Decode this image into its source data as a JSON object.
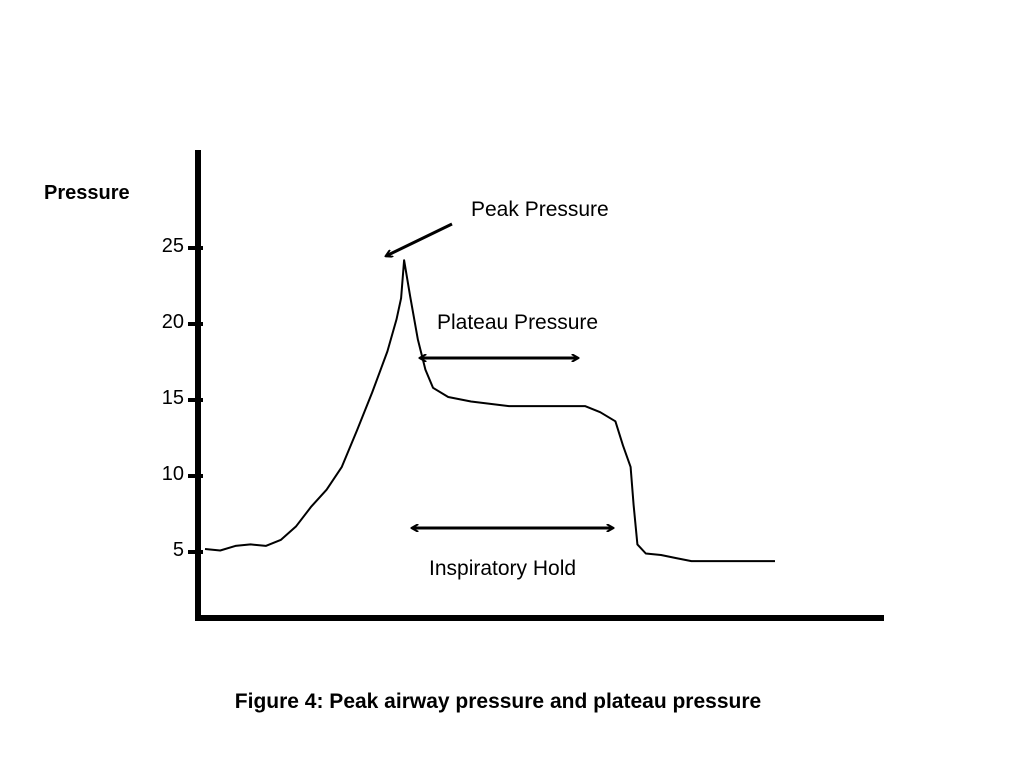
{
  "chart_data": {
    "type": "line",
    "ylabel": "Pressure",
    "xlabel": "",
    "yticks": [
      5,
      10,
      15,
      20,
      25
    ],
    "ylim": [
      0,
      29
    ],
    "grid": false,
    "series": [
      {
        "points": [
          [
            0,
            5.2
          ],
          [
            2,
            5.1
          ],
          [
            4,
            5.4
          ],
          [
            6,
            5.5
          ],
          [
            8,
            5.4
          ],
          [
            10,
            5.8
          ],
          [
            12,
            6.7
          ],
          [
            14,
            8.0
          ],
          [
            16,
            9.1
          ],
          [
            18,
            10.6
          ],
          [
            20,
            13.0
          ],
          [
            22,
            15.5
          ],
          [
            24,
            18.2
          ],
          [
            25.2,
            20.3
          ],
          [
            25.8,
            21.7
          ],
          [
            26.2,
            24.2
          ],
          [
            27,
            21.8
          ],
          [
            28,
            19.0
          ],
          [
            29,
            17.0
          ],
          [
            30,
            15.8
          ],
          [
            32,
            15.2
          ],
          [
            35,
            14.9
          ],
          [
            40,
            14.6
          ],
          [
            45,
            14.6
          ],
          [
            50,
            14.6
          ],
          [
            52,
            14.2
          ],
          [
            54,
            13.6
          ],
          [
            55,
            12.0
          ],
          [
            56,
            10.6
          ],
          [
            56.4,
            8.1
          ],
          [
            56.9,
            5.5
          ],
          [
            58,
            4.9
          ],
          [
            60,
            4.8
          ],
          [
            62,
            4.6
          ],
          [
            64,
            4.4
          ],
          [
            70,
            4.4
          ],
          [
            75,
            4.4
          ]
        ]
      }
    ],
    "annotations": {
      "peak": "Peak Pressure",
      "plateau": "Plateau Pressure",
      "hold": "Inspiratory Hold"
    }
  },
  "caption": "Figure 4: Peak airway pressure and plateau pressure"
}
